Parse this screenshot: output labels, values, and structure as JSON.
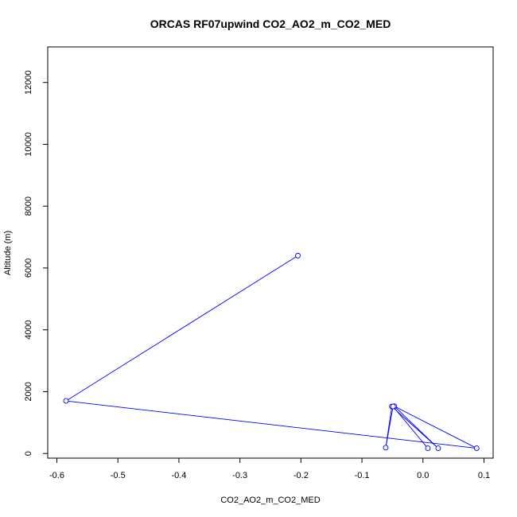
{
  "chart_data": {
    "type": "line",
    "title": "ORCAS RF07upwind CO2_AO2_m_CO2_MED",
    "xlabel": "CO2_AO2_m_CO2_MED",
    "ylabel": "Altitude (m)",
    "xlim": [
      -0.615,
      0.115
    ],
    "ylim": [
      -150,
      13150
    ],
    "xticks": [
      -0.6,
      -0.5,
      -0.4,
      -0.3,
      -0.2,
      -0.1,
      0.0,
      0.1
    ],
    "xtick_labels": [
      "-0.6",
      "-0.5",
      "-0.4",
      "-0.3",
      "-0.2",
      "-0.1",
      "0.0",
      "0.1"
    ],
    "yticks": [
      0,
      2000,
      4000,
      6000,
      8000,
      10000,
      12000
    ],
    "ytick_labels": [
      "0",
      "2000",
      "4000",
      "6000",
      "8000",
      "10000",
      "12000"
    ],
    "grid": false,
    "series": [
      {
        "color": "#0000ff",
        "marker": "open-circle",
        "points": [
          {
            "x": -0.205,
            "y": 6400
          },
          {
            "x": -0.585,
            "y": 1700
          },
          {
            "x": 0.088,
            "y": 170
          },
          {
            "x": -0.047,
            "y": 1530
          },
          {
            "x": 0.025,
            "y": 170
          },
          {
            "x": -0.051,
            "y": 1520
          },
          {
            "x": -0.061,
            "y": 190
          },
          {
            "x": -0.049,
            "y": 1520
          },
          {
            "x": 0.008,
            "y": 170
          }
        ]
      }
    ]
  }
}
